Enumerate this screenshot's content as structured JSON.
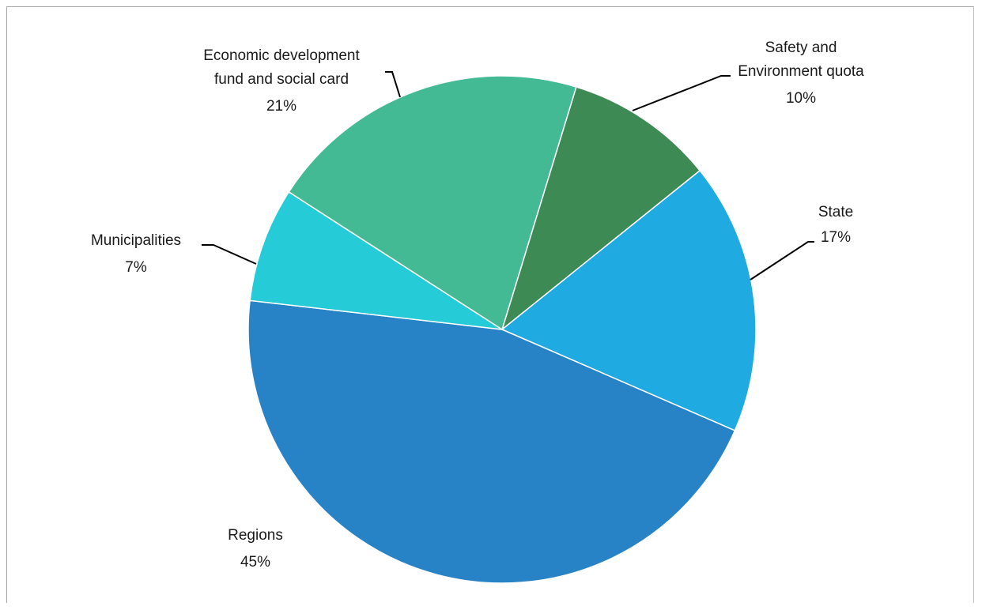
{
  "chart_data": {
    "type": "pie",
    "slices": [
      {
        "label": "Safety and Environment quota",
        "label_lines": [
          "Safety and",
          "Environment quota"
        ],
        "percent_label": "10%",
        "value": 9.5,
        "color": "#3d8a55"
      },
      {
        "label": "State",
        "label_lines": [
          "State"
        ],
        "percent_label": "17%",
        "value": 17.3,
        "color": "#1faae2"
      },
      {
        "label": "Regions",
        "label_lines": [
          "Regions"
        ],
        "percent_label": "45%",
        "value": 45.3,
        "color": "#2883c6"
      },
      {
        "label": "Municipalities",
        "label_lines": [
          "Municipalities"
        ],
        "percent_label": "7%",
        "value": 7.3,
        "color": "#25cbd7"
      },
      {
        "label": "Economic development fund and social card",
        "label_lines": [
          "Economic development",
          "fund and social card"
        ],
        "percent_label": "21%",
        "value": 20.6,
        "color": "#43b994"
      }
    ],
    "start_angle_deg": 17,
    "direction": "clockwise"
  }
}
